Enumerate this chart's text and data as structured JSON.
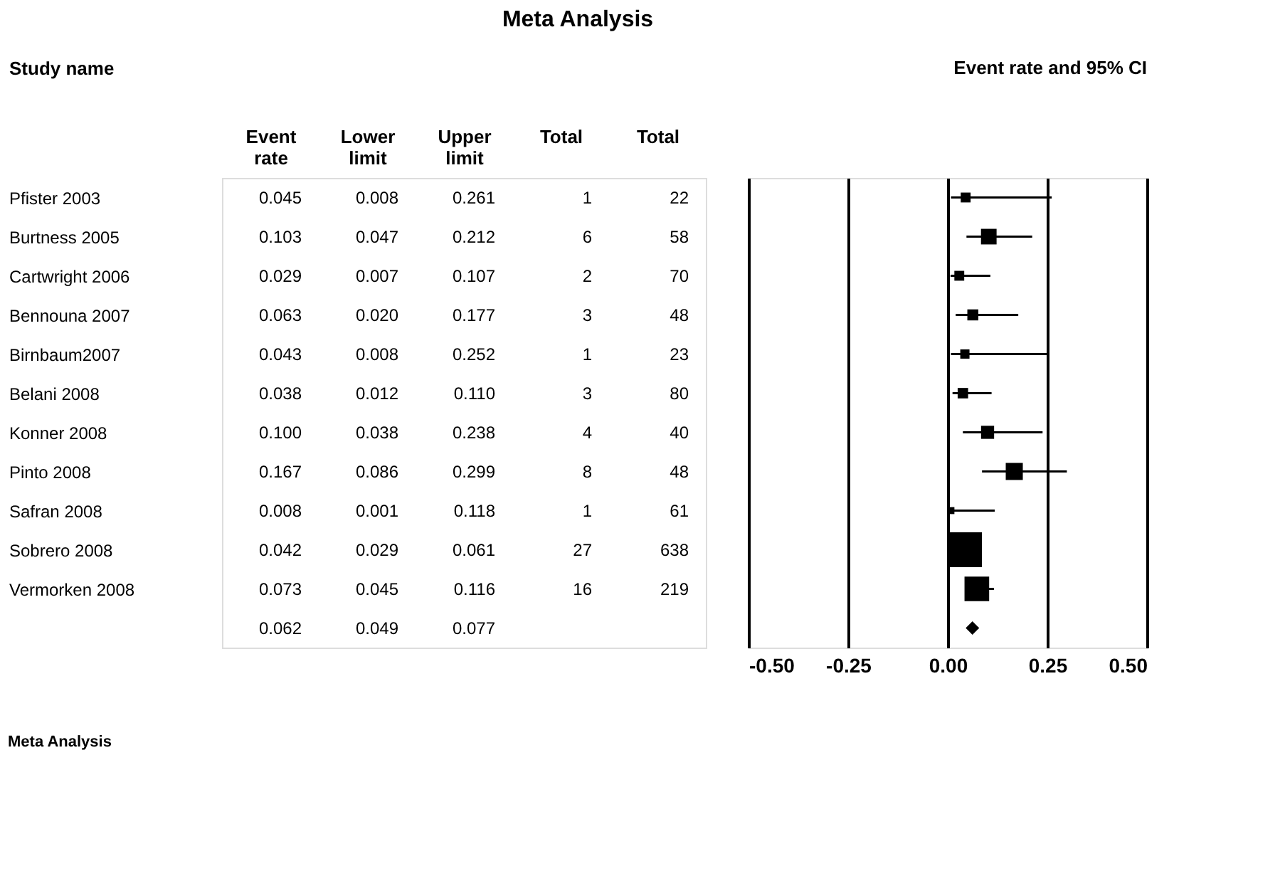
{
  "chart_data": [
    {
      "type": "heatmap",
      "title": "Meta Analysis",
      "ylabel": "Study name",
      "categories": [
        "Event rate",
        "Lower limit",
        "Upper limit",
        "Total",
        "Total"
      ],
      "y_categories": [
        "Pfister 2003",
        "Burtness 2005",
        "Cartwright 2006",
        "Bennouna 2007",
        "Birnbaum2007",
        "Belani 2008",
        "Konner 2008",
        "Pinto 2008",
        "Safran 2008",
        "Sobrero 2008",
        "Vermorken 2008",
        null
      ],
      "cells": [
        [
          0.045,
          0.008,
          0.261,
          1,
          22
        ],
        [
          0.103,
          0.047,
          0.212,
          6,
          58
        ],
        [
          0.029,
          0.007,
          0.107,
          2,
          70
        ],
        [
          0.063,
          0.02,
          0.177,
          3,
          48
        ],
        [
          0.043,
          0.008,
          0.252,
          1,
          23
        ],
        [
          0.038,
          0.012,
          0.11,
          3,
          80
        ],
        [
          0.1,
          0.038,
          0.238,
          4,
          40
        ],
        [
          0.167,
          0.086,
          0.299,
          8,
          48
        ],
        [
          0.008,
          0.001,
          0.118,
          1,
          61
        ],
        [
          0.042,
          0.029,
          0.061,
          27,
          638
        ],
        [
          0.073,
          0.045,
          0.116,
          16,
          219
        ],
        [
          0.062,
          0.049,
          0.077,
          null,
          null
        ]
      ],
      "cell_labels": [
        [
          "0.045",
          "0.008",
          "0.261",
          "1",
          "22"
        ],
        [
          "0.103",
          "0.047",
          "0.212",
          "6",
          "58"
        ],
        [
          "0.029",
          "0.007",
          "0.107",
          "2",
          "70"
        ],
        [
          "0.063",
          "0.020",
          "0.177",
          "3",
          "48"
        ],
        [
          "0.043",
          "0.008",
          "0.252",
          "1",
          "23"
        ],
        [
          "0.038",
          "0.012",
          "0.110",
          "3",
          "80"
        ],
        [
          "0.100",
          "0.038",
          "0.238",
          "4",
          "40"
        ],
        [
          "0.167",
          "0.086",
          "0.299",
          "8",
          "48"
        ],
        [
          "0.008",
          "0.001",
          "0.118",
          "1",
          "61"
        ],
        [
          "0.042",
          "0.029",
          "0.061",
          "27",
          "638"
        ],
        [
          "0.073",
          "0.045",
          "0.116",
          "16",
          "219"
        ],
        [
          "0.062",
          "0.049",
          "0.077",
          null,
          null
        ]
      ],
      "annotations": [
        "Meta Analysis"
      ]
    },
    {
      "type": "bubble",
      "title": "Event rate and 95% CI",
      "orientation": "horizontal",
      "categories": [
        null,
        null,
        null,
        null,
        null,
        null,
        null,
        null,
        null,
        null,
        null,
        null
      ],
      "series": [
        {
          "color": "#000000",
          "marker": "square",
          "values": [
            0.045,
            0.103,
            0.029,
            0.063,
            0.043,
            0.038,
            0.1,
            0.167,
            0.008,
            0.042,
            0.073,
            null
          ],
          "errors": [
            [
              0.008,
              0.261
            ],
            [
              0.047,
              0.212
            ],
            [
              0.007,
              0.107
            ],
            [
              0.02,
              0.177
            ],
            [
              0.008,
              0.252
            ],
            [
              0.012,
              0.11
            ],
            [
              0.038,
              0.238
            ],
            [
              0.086,
              0.299
            ],
            [
              0.001,
              0.118
            ],
            null,
            [
              0.045,
              0.116
            ],
            null
          ],
          "sizes": [
            0.08,
            0.2,
            0.08,
            0.1,
            0.07,
            0.09,
            0.14,
            0.24,
            0.04,
            1,
            0.5,
            null
          ]
        },
        {
          "type": "scatter",
          "color": "#000000",
          "marker": "diamond",
          "values": [
            null,
            null,
            null,
            null,
            null,
            null,
            null,
            null,
            null,
            null,
            null,
            0.062
          ],
          "errors": [
            null,
            null,
            null,
            null,
            null,
            null,
            null,
            null,
            null,
            null,
            null,
            [
              0.049,
              0.077
            ]
          ]
        }
      ],
      "xlim": [
        -0.5,
        0.5
      ],
      "xticks": [
        {
          "value": -0.5,
          "label": "-0.50"
        },
        {
          "value": -0.25,
          "label": "-0.25"
        },
        {
          "value": 0,
          "label": "0.00"
        },
        {
          "value": 0.25,
          "label": "0.25"
        },
        {
          "value": 0.5,
          "label": "0.50"
        }
      ],
      "grid": "x",
      "tick_labels": "x"
    }
  ]
}
